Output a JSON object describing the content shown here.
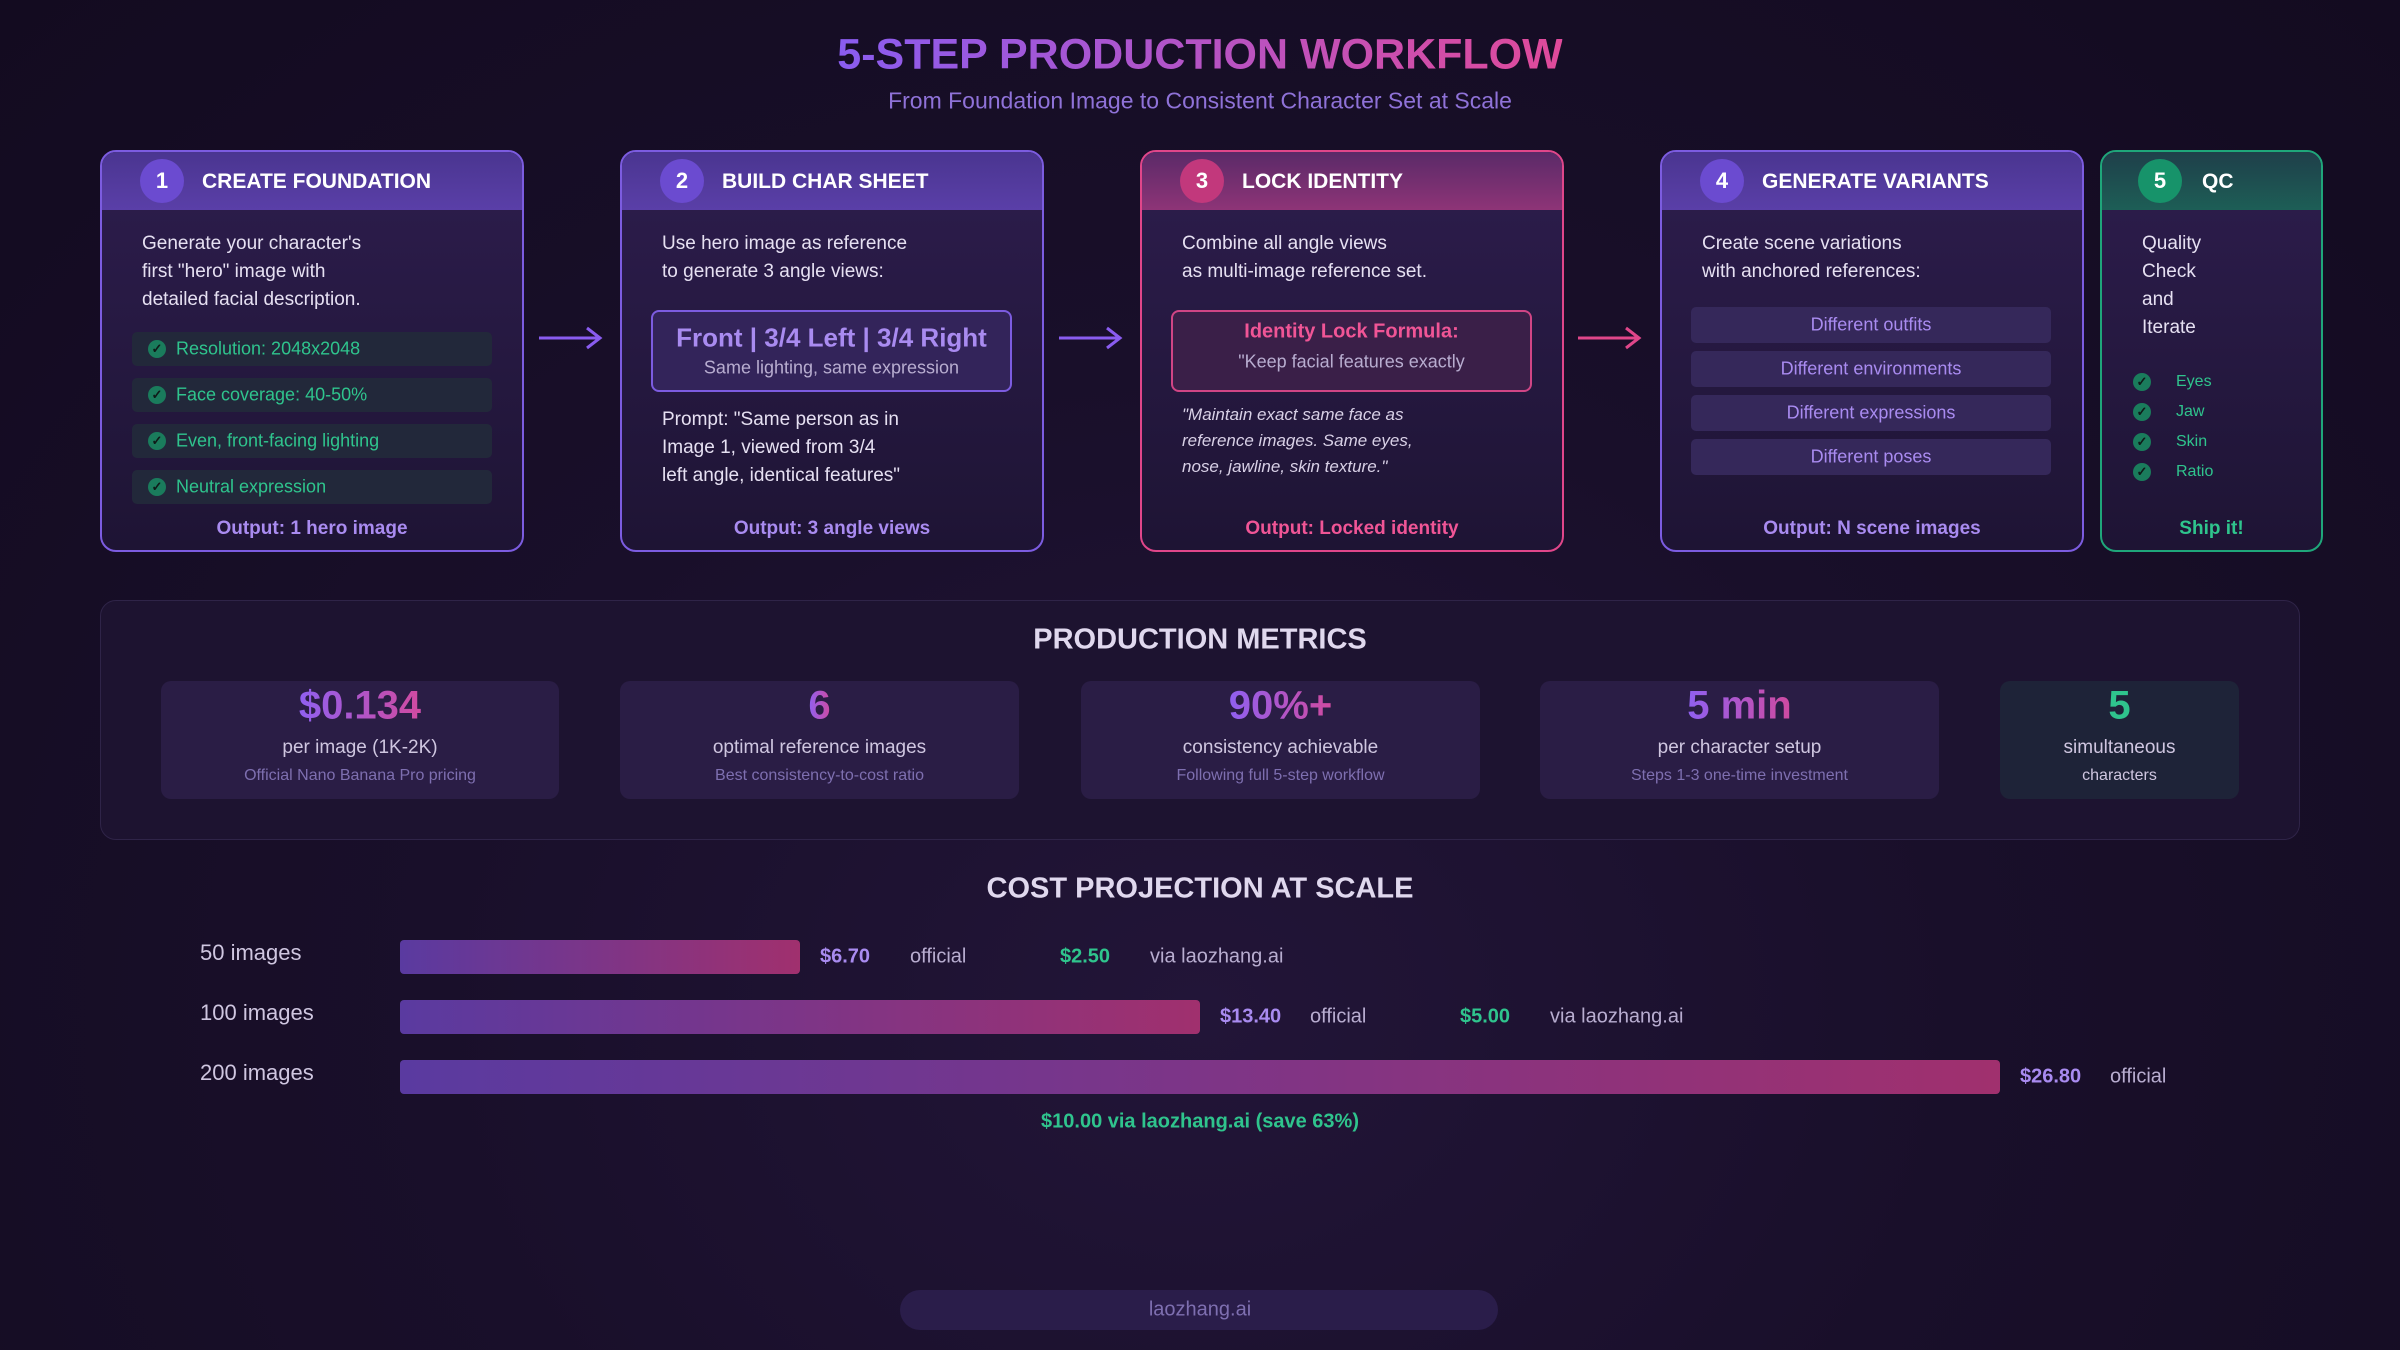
{
  "header": {
    "title": "5-STEP PRODUCTION WORKFLOW",
    "subtitle": "From Foundation Image to Consistent Character Set at Scale"
  },
  "steps": [
    {
      "number": "1",
      "title": "CREATE FOUNDATION",
      "lines": [
        "Generate your character's",
        "first \"hero\" image with",
        "detailed facial description."
      ],
      "checks": [
        "Resolution: 2048x2048",
        "Face coverage: 40-50%",
        "Even, front-facing lighting",
        "Neutral expression"
      ],
      "output": "Output: 1 hero image"
    },
    {
      "number": "2",
      "title": "BUILD CHAR SHEET",
      "lines": [
        "Use hero image as reference",
        "to generate 3 angle views:"
      ],
      "box": {
        "title": "Front | 3/4 Left | 3/4 Right",
        "subtitle": "Same lighting, same expression"
      },
      "after": [
        "Prompt: \"Same person as in",
        "Image 1, viewed from 3/4",
        "left angle, identical features\""
      ],
      "output": "Output: 3 angle views"
    },
    {
      "number": "3",
      "title": "LOCK IDENTITY",
      "lines": [
        "Combine all angle views",
        "as multi-image reference set."
      ],
      "box": {
        "title": "Identity Lock Formula:",
        "subtitle": "\"Keep facial features exactly"
      },
      "quote": [
        "\"Maintain exact same face as",
        "reference images. Same eyes,",
        "nose, jawline, skin texture.\""
      ],
      "output": "Output: Locked identity"
    },
    {
      "number": "4",
      "title": "GENERATE VARIANTS",
      "lines": [
        "Create scene variations",
        "with anchored references:"
      ],
      "items": [
        "Different outfits",
        "Different environments",
        "Different expressions",
        "Different poses"
      ],
      "output": "Output: N scene images"
    },
    {
      "number": "5",
      "title": "QC",
      "lines": [
        "Quality",
        "Check",
        "and",
        "Iterate"
      ],
      "checks": [
        "Eyes",
        "Jaw",
        "Skin",
        "Ratio"
      ],
      "output": "Ship it!"
    }
  ],
  "metrics": {
    "title": "PRODUCTION METRICS",
    "items": [
      {
        "value": "$0.134",
        "label": "per image (1K-2K)",
        "note": "Official Nano Banana Pro pricing"
      },
      {
        "value": "6",
        "label": "optimal reference images",
        "note": "Best consistency-to-cost ratio"
      },
      {
        "value": "90%+",
        "label": "consistency achievable",
        "note": "Following full 5-step workflow"
      },
      {
        "value": "5 min",
        "label": "per character setup",
        "note": "Steps 1-3 one-time investment"
      },
      {
        "value": "5",
        "label": "simultaneous",
        "note": "characters"
      }
    ]
  },
  "cost": {
    "title": "COST PROJECTION AT SCALE",
    "rows": [
      {
        "label": "50 images",
        "value": 6.7,
        "value_label": "$6.70",
        "official": "official",
        "alt": "$2.50",
        "via": "via laozhang.ai"
      },
      {
        "label": "100 images",
        "value": 13.4,
        "value_label": "$13.40",
        "official": "official",
        "alt": "$5.00",
        "via": "via laozhang.ai"
      },
      {
        "label": "200 images",
        "value": 26.8,
        "value_label": "$26.80",
        "official": "official"
      }
    ],
    "note": "$10.00 via laozhang.ai (save 63%)"
  },
  "footer": "laozhang.ai"
}
